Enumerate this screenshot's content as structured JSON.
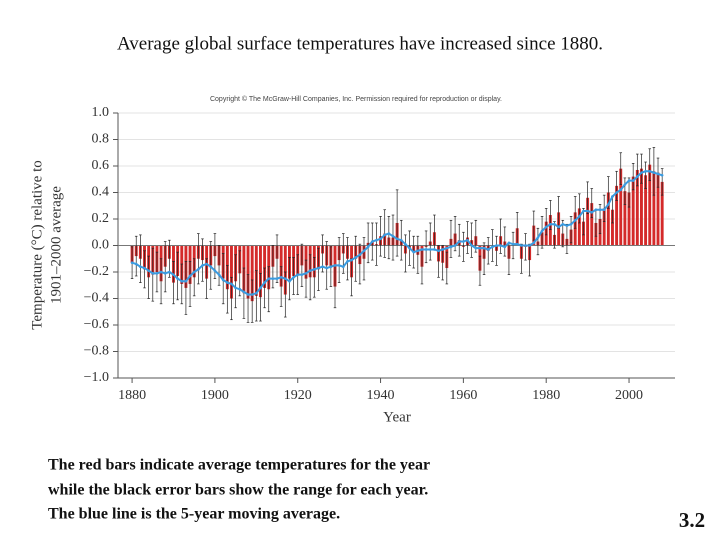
{
  "slide": {
    "title": "Average global surface temperatures have increased since 1880.",
    "caption": [
      "The red bars indicate average temperatures for the year",
      "while the black error bars show the range for each year.",
      "The blue line is the 5-year moving average."
    ],
    "page_number": "3.2"
  },
  "chart_data": {
    "type": "bar",
    "copyright": "Copyright © The McGraw-Hill Companies, Inc. Permission required for reproduction or display.",
    "x_label": "Year",
    "y_label": [
      "Temperature (°C) relative to",
      "1901–2000 average"
    ],
    "x": [
      1880,
      1881,
      1882,
      1883,
      1884,
      1885,
      1886,
      1887,
      1888,
      1889,
      1890,
      1891,
      1892,
      1893,
      1894,
      1895,
      1896,
      1897,
      1898,
      1899,
      1900,
      1901,
      1902,
      1903,
      1904,
      1905,
      1906,
      1907,
      1908,
      1909,
      1910,
      1911,
      1912,
      1913,
      1914,
      1915,
      1916,
      1917,
      1918,
      1919,
      1920,
      1921,
      1922,
      1923,
      1924,
      1925,
      1926,
      1927,
      1928,
      1929,
      1930,
      1931,
      1932,
      1933,
      1934,
      1935,
      1936,
      1937,
      1938,
      1939,
      1940,
      1941,
      1942,
      1943,
      1944,
      1945,
      1946,
      1947,
      1948,
      1949,
      1950,
      1951,
      1952,
      1953,
      1954,
      1955,
      1956,
      1957,
      1958,
      1959,
      1960,
      1961,
      1962,
      1963,
      1964,
      1965,
      1966,
      1967,
      1968,
      1969,
      1970,
      1971,
      1972,
      1973,
      1974,
      1975,
      1976,
      1977,
      1978,
      1979,
      1980,
      1981,
      1982,
      1983,
      1984,
      1985,
      1986,
      1987,
      1988,
      1989,
      1990,
      1991,
      1992,
      1993,
      1994,
      1995,
      1996,
      1997,
      1998,
      1999,
      2000,
      2001,
      2002,
      2003,
      2004,
      2005,
      2006,
      2007,
      2008
    ],
    "values": [
      -0.13,
      -0.08,
      -0.1,
      -0.18,
      -0.24,
      -0.22,
      -0.2,
      -0.27,
      -0.16,
      -0.1,
      -0.28,
      -0.23,
      -0.29,
      -0.32,
      -0.29,
      -0.24,
      -0.1,
      -0.11,
      -0.25,
      -0.15,
      -0.08,
      -0.15,
      -0.25,
      -0.33,
      -0.4,
      -0.27,
      -0.21,
      -0.36,
      -0.4,
      -0.42,
      -0.38,
      -0.39,
      -0.32,
      -0.33,
      -0.16,
      -0.1,
      -0.31,
      -0.37,
      -0.25,
      -0.23,
      -0.22,
      -0.15,
      -0.25,
      -0.24,
      -0.24,
      -0.18,
      -0.06,
      -0.15,
      -0.16,
      -0.31,
      -0.11,
      -0.06,
      -0.1,
      -0.24,
      -0.1,
      -0.14,
      -0.1,
      0.02,
      0.03,
      0.01,
      0.07,
      0.09,
      0.06,
      0.06,
      0.17,
      0.04,
      -0.06,
      -0.02,
      -0.05,
      -0.07,
      -0.16,
      -0.01,
      0.03,
      0.1,
      -0.12,
      -0.13,
      -0.17,
      0.05,
      0.09,
      0.04,
      -0.01,
      0.06,
      0.04,
      0.07,
      -0.19,
      -0.1,
      -0.04,
      0.0,
      -0.04,
      0.07,
      0.03,
      -0.1,
      0.0,
      0.13,
      -0.1,
      -0.01,
      -0.11,
      0.15,
      0.03,
      0.1,
      0.18,
      0.23,
      0.08,
      0.25,
      0.09,
      0.05,
      0.12,
      0.25,
      0.28,
      0.18,
      0.36,
      0.32,
      0.17,
      0.2,
      0.28,
      0.4,
      0.27,
      0.45,
      0.58,
      0.41,
      0.4,
      0.52,
      0.57,
      0.58,
      0.53,
      0.61,
      0.56,
      0.55,
      0.48
    ],
    "errors": [
      0.12,
      0.15,
      0.18,
      0.14,
      0.16,
      0.2,
      0.15,
      0.17,
      0.19,
      0.14,
      0.16,
      0.18,
      0.15,
      0.2,
      0.17,
      0.14,
      0.19,
      0.16,
      0.15,
      0.18,
      0.17,
      0.15,
      0.19,
      0.18,
      0.16,
      0.2,
      0.17,
      0.19,
      0.18,
      0.16,
      0.19,
      0.18,
      0.15,
      0.17,
      0.16,
      0.18,
      0.15,
      0.17,
      0.16,
      0.14,
      0.15,
      0.16,
      0.14,
      0.17,
      0.15,
      0.16,
      0.14,
      0.18,
      0.15,
      0.16,
      0.17,
      0.15,
      0.16,
      0.14,
      0.17,
      0.15,
      0.16,
      0.15,
      0.14,
      0.16,
      0.15,
      0.18,
      0.16,
      0.17,
      0.25,
      0.15,
      0.14,
      0.13,
      0.12,
      0.14,
      0.13,
      0.12,
      0.14,
      0.13,
      0.12,
      0.13,
      0.12,
      0.14,
      0.13,
      0.12,
      0.11,
      0.12,
      0.13,
      0.12,
      0.11,
      0.12,
      0.1,
      0.12,
      0.11,
      0.13,
      0.11,
      0.12,
      0.1,
      0.12,
      0.11,
      0.1,
      0.12,
      0.11,
      0.1,
      0.12,
      0.1,
      0.11,
      0.1,
      0.12,
      0.1,
      0.11,
      0.1,
      0.12,
      0.11,
      0.1,
      0.12,
      0.11,
      0.1,
      0.11,
      0.1,
      0.12,
      0.1,
      0.11,
      0.12,
      0.1,
      0.11,
      0.1,
      0.12,
      0.11,
      0.1,
      0.12,
      0.18,
      0.11,
      0.1
    ],
    "moving_average": [
      -0.13,
      -0.14,
      -0.16,
      -0.17,
      -0.19,
      -0.21,
      -0.21,
      -0.2,
      -0.21,
      -0.2,
      -0.22,
      -0.25,
      -0.27,
      -0.27,
      -0.23,
      -0.2,
      -0.18,
      -0.15,
      -0.14,
      -0.16,
      -0.19,
      -0.22,
      -0.26,
      -0.28,
      -0.29,
      -0.32,
      -0.33,
      -0.35,
      -0.37,
      -0.37,
      -0.36,
      -0.32,
      -0.28,
      -0.25,
      -0.25,
      -0.25,
      -0.24,
      -0.25,
      -0.27,
      -0.24,
      -0.22,
      -0.22,
      -0.21,
      -0.19,
      -0.18,
      -0.17,
      -0.16,
      -0.17,
      -0.16,
      -0.15,
      -0.15,
      -0.16,
      -0.12,
      -0.11,
      -0.09,
      -0.07,
      -0.04,
      -0.01,
      0.03,
      0.04,
      0.05,
      0.08,
      0.09,
      0.07,
      0.05,
      0.04,
      0.01,
      -0.02,
      -0.05,
      -0.04,
      -0.03,
      -0.03,
      -0.03,
      -0.03,
      -0.04,
      -0.03,
      -0.02,
      -0.01,
      0.0,
      0.03,
      0.03,
      0.04,
      0.0,
      -0.02,
      -0.02,
      -0.02,
      -0.03,
      -0.01,
      0.0,
      0.0,
      -0.01,
      0.02,
      0.01,
      0.01,
      0.0,
      0.0,
      0.0,
      0.02,
      0.06,
      0.11,
      0.14,
      0.16,
      0.16,
      0.14,
      0.16,
      0.15,
      0.16,
      0.19,
      0.22,
      0.26,
      0.26,
      0.25,
      0.27,
      0.27,
      0.27,
      0.31,
      0.37,
      0.4,
      0.42,
      0.46,
      0.49,
      0.49,
      0.52,
      0.55,
      0.56,
      0.56,
      0.55,
      0.54,
      0.53
    ],
    "color": "#d42a2a",
    "error_color": "#222222",
    "line_color": "#3b9be0",
    "xlim": [
      1876.6,
      2011.1
    ],
    "xticks": [
      1880,
      1900,
      1920,
      1940,
      1960,
      1980,
      2000
    ],
    "ylim": [
      -1,
      1
    ],
    "yticks": [
      {
        "value": -1,
        "label": "−1.0"
      },
      {
        "value": -0.8,
        "label": "−0.8"
      },
      {
        "value": -0.6,
        "label": "−0.6"
      },
      {
        "value": -0.4,
        "label": "−0.4"
      },
      {
        "value": -0.2,
        "label": "−0.2"
      },
      {
        "value": 0,
        "label": "0.0"
      },
      0.2,
      0.4,
      0.6,
      0.8,
      {
        "value": 1,
        "label": "1.0"
      }
    ],
    "grid": true
  }
}
